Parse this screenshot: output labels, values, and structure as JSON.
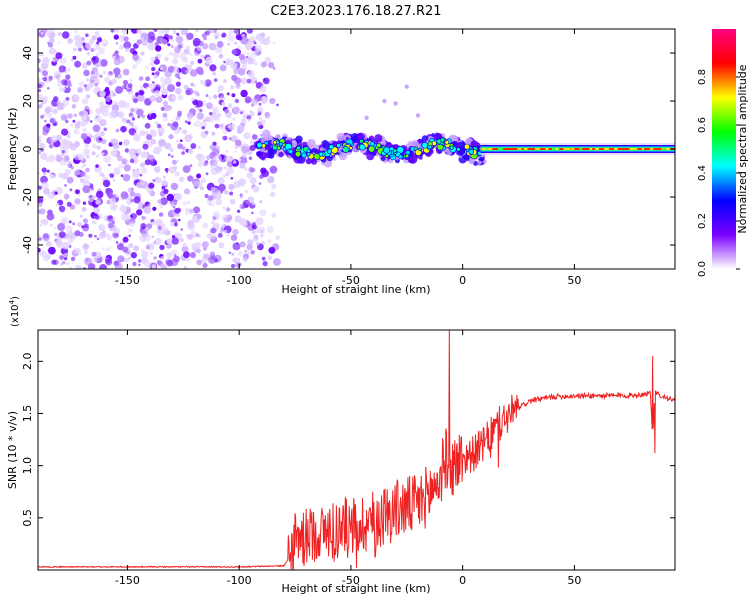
{
  "title": "C2E3.2023.176.18.27.R21",
  "chart_data": [
    {
      "type": "heatmap",
      "description_kind": "spectrogram",
      "xlabel": "Height of straight line (km)",
      "ylabel": "Frequency (Hz)",
      "xlim": [
        -190,
        95
      ],
      "ylim": [
        -50,
        50
      ],
      "xticks": [
        -150,
        -100,
        -50,
        0,
        50
      ],
      "yticks": [
        40,
        20,
        0,
        -20,
        -40
      ],
      "noise_region_x": [
        -190,
        -88
      ],
      "signal_center_hz": 0,
      "colorbar": {
        "label": "Normalized spectral amplitude",
        "range": [
          0.0,
          1.0
        ],
        "ticks": [
          "0.0",
          "0.2",
          "0.4",
          "0.6",
          "0.8"
        ],
        "colors": [
          "#ffffff",
          "#7a00ff",
          "#0000ff",
          "#00ffff",
          "#00ff00",
          "#ffff00",
          "#ff0000",
          "#ff0080"
        ]
      }
    },
    {
      "type": "line",
      "xlabel": "Height of straight line (km)",
      "ylabel": "SNR (10 * v/v)",
      "exponent_label": "(x10",
      "exponent_sup": "4",
      "exponent_close": ")",
      "xlim": [
        -190,
        95
      ],
      "ylim": [
        0,
        2.3
      ],
      "xticks": [
        -150,
        -100,
        -50,
        0,
        50
      ],
      "yticks": [
        0.5,
        1.0,
        1.5,
        2.0
      ],
      "ytick_labels": [
        "0.5",
        "1.0",
        "1.5",
        "2.0"
      ],
      "color": "#ee2222",
      "series": [
        {
          "name": "SNR",
          "x": [
            -190,
            -150,
            -100,
            -80,
            -77,
            -75,
            -70,
            -60,
            -50,
            -40,
            -30,
            -20,
            -15,
            -10,
            -8,
            -5,
            0,
            5,
            10,
            15,
            20,
            25,
            30,
            40,
            50,
            60,
            70,
            80,
            84,
            85,
            86,
            88,
            95
          ],
          "y": [
            0.03,
            0.03,
            0.03,
            0.04,
            0.15,
            0.25,
            0.3,
            0.35,
            0.38,
            0.45,
            0.55,
            0.6,
            0.7,
            0.85,
            1.05,
            0.95,
            1.05,
            1.1,
            1.2,
            1.35,
            1.45,
            1.55,
            1.62,
            1.66,
            1.67,
            1.67,
            1.67,
            1.68,
            1.7,
            1.25,
            1.7,
            1.68,
            1.62
          ]
        }
      ],
      "spikes": [
        {
          "x": -6,
          "y": 2.3
        },
        {
          "x": 85,
          "y": 2.05
        },
        {
          "x": 86,
          "y": 1.12
        }
      ]
    }
  ]
}
